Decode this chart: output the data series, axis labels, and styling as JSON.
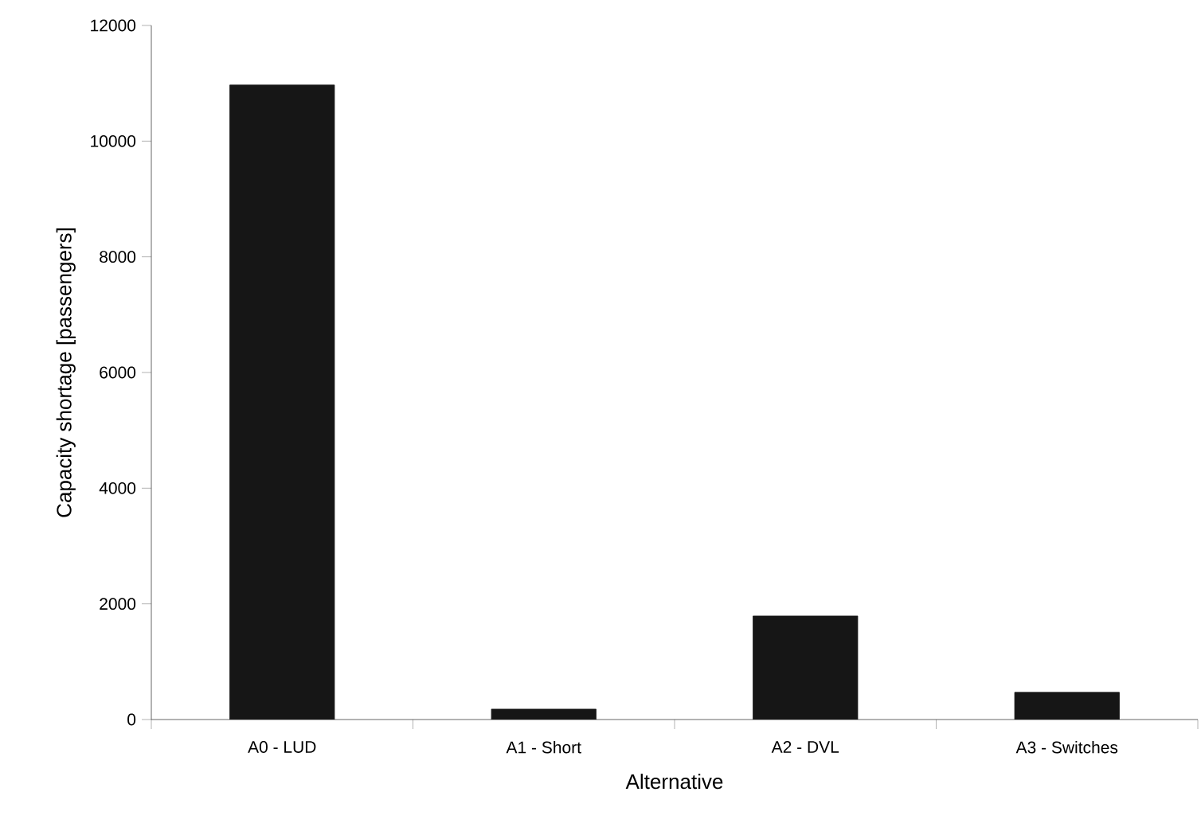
{
  "chart_data": {
    "type": "bar",
    "xlabel": "Alternative",
    "ylabel": "Capacity shortage [passengers]",
    "categories": [
      "A0 - LUD",
      "A1 - Short",
      "A2 - DVL",
      "A3 - Switches"
    ],
    "values": [
      10970,
      180,
      1790,
      470
    ],
    "color": "#161616",
    "ylim": [
      0,
      12000
    ],
    "yticks": [
      0,
      2000,
      4000,
      6000,
      8000,
      10000,
      12000
    ]
  }
}
